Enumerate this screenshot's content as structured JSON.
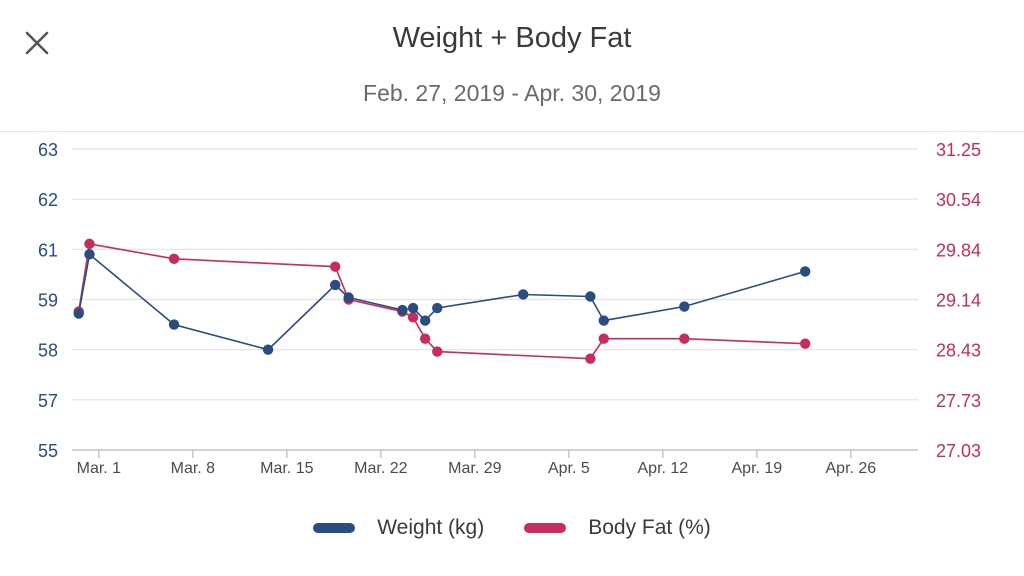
{
  "header": {
    "close_icon": "close-icon",
    "title": "Weight + Body Fat",
    "subtitle": "Feb. 27, 2019 - Apr. 30, 2019"
  },
  "colors": {
    "weight": "#2b4c7e",
    "body_fat": "#c72c5c",
    "grid": "#e2e2e2",
    "axis": "#b8b8b8"
  },
  "chart_data": {
    "type": "line",
    "title": "Weight + Body Fat",
    "subtitle": "Feb. 27, 2019 - Apr. 30, 2019",
    "x_ticks": [
      {
        "day": 2,
        "label": "Mar. 1"
      },
      {
        "day": 9,
        "label": "Mar. 8"
      },
      {
        "day": 16,
        "label": "Mar. 15"
      },
      {
        "day": 23,
        "label": "Mar. 22"
      },
      {
        "day": 30,
        "label": "Mar. 29"
      },
      {
        "day": 37,
        "label": "Apr. 5"
      },
      {
        "day": 44,
        "label": "Apr. 12"
      },
      {
        "day": 51,
        "label": "Apr. 19"
      },
      {
        "day": 58,
        "label": "Apr. 26"
      }
    ],
    "x_range": [
      0,
      63
    ],
    "y_left": {
      "ticks": [
        "63",
        "62",
        "61",
        "59",
        "58",
        "57",
        "55"
      ],
      "range": [
        0,
        6
      ]
    },
    "y_right": {
      "ticks": [
        "31.25",
        "30.54",
        "29.84",
        "29.14",
        "28.43",
        "27.73",
        "27.03"
      ],
      "range": [
        27.03,
        31.25
      ]
    },
    "series": [
      {
        "name": "Weight (kg)",
        "axis": "left",
        "points": [
          {
            "day": 0.5,
            "v": 2.72
          },
          {
            "day": 1.3,
            "v": 3.9
          },
          {
            "day": 7.6,
            "v": 2.5
          },
          {
            "day": 14.6,
            "v": 2.0
          },
          {
            "day": 19.6,
            "v": 3.29
          },
          {
            "day": 20.6,
            "v": 3.04
          },
          {
            "day": 24.6,
            "v": 2.79
          },
          {
            "day": 25.4,
            "v": 2.83
          },
          {
            "day": 26.3,
            "v": 2.58
          },
          {
            "day": 27.2,
            "v": 2.83
          },
          {
            "day": 33.6,
            "v": 3.1
          },
          {
            "day": 38.6,
            "v": 3.06
          },
          {
            "day": 39.6,
            "v": 2.58
          },
          {
            "day": 45.6,
            "v": 2.86
          },
          {
            "day": 54.6,
            "v": 3.56
          }
        ]
      },
      {
        "name": "Body Fat (%)",
        "axis": "right",
        "points": [
          {
            "day": 0.5,
            "v": 28.97
          },
          {
            "day": 1.3,
            "v": 29.92
          },
          {
            "day": 7.6,
            "v": 29.71
          },
          {
            "day": 19.6,
            "v": 29.6
          },
          {
            "day": 20.6,
            "v": 29.14
          },
          {
            "day": 24.6,
            "v": 28.97
          },
          {
            "day": 25.4,
            "v": 28.89
          },
          {
            "day": 26.3,
            "v": 28.59
          },
          {
            "day": 27.2,
            "v": 28.41
          },
          {
            "day": 38.6,
            "v": 28.31
          },
          {
            "day": 39.6,
            "v": 28.59
          },
          {
            "day": 45.6,
            "v": 28.59
          },
          {
            "day": 54.6,
            "v": 28.52
          }
        ]
      }
    ],
    "legend": [
      {
        "label": "Weight (kg)",
        "color": "#2b4c7e"
      },
      {
        "label": "Body Fat (%)",
        "color": "#c72c5c"
      }
    ],
    "legend_position": "bottom",
    "grid": true
  }
}
